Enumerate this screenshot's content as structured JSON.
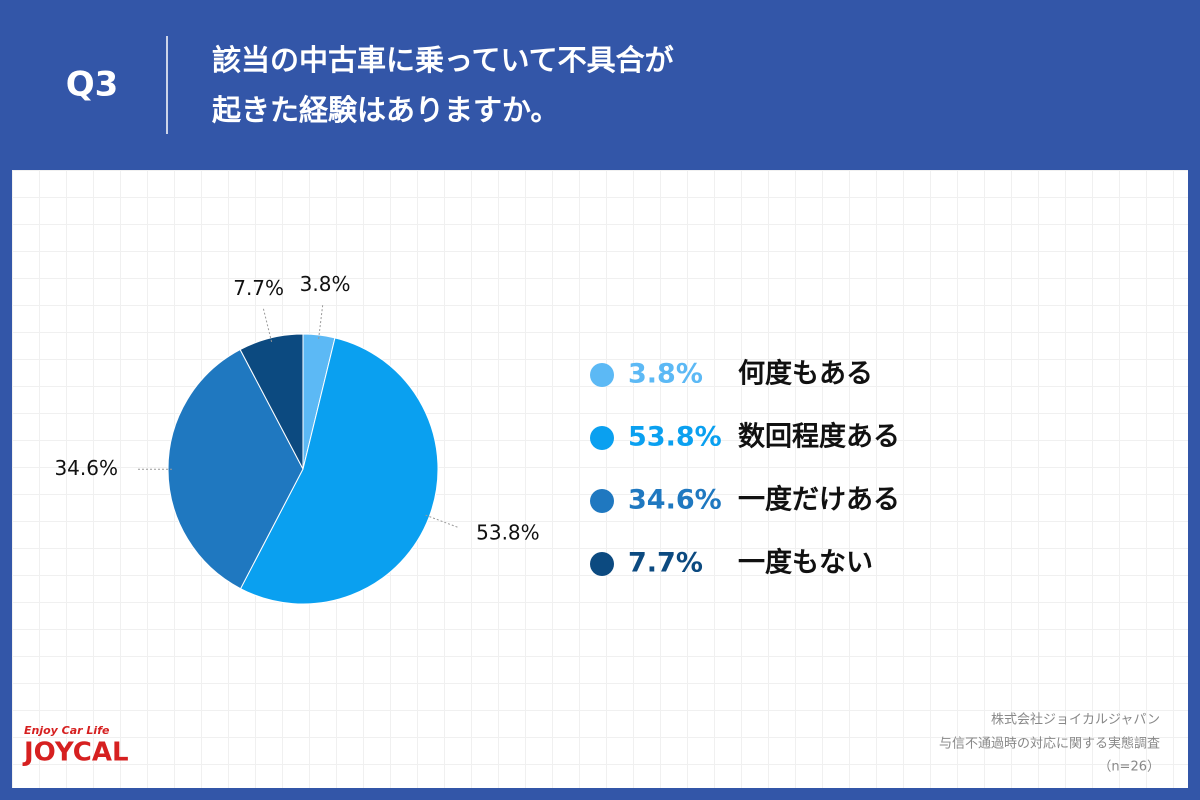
{
  "question": "Q3",
  "chart_data": {
    "type": "pie",
    "title": [
      "該当の中古車に乗っていて不具合が",
      "起きた経験はありますか。"
    ],
    "categories": [
      "何度もある",
      "数回程度ある",
      "一度だけある",
      "一度もない"
    ],
    "values": [
      3.8,
      53.8,
      34.6,
      7.7
    ],
    "value_labels": [
      "3.8%",
      "53.8%",
      "34.6%",
      "7.7%"
    ],
    "colors": [
      "#5cb9f5",
      "#0aa0f0",
      "#1f78c0",
      "#0c4a80"
    ],
    "legend": "right"
  },
  "source": [
    "株式会社ジョイカルジャパン",
    "与信不通過時の対応に関する実態調査",
    "（n=26）"
  ],
  "logo": {
    "tagline": "Enjoy Car Life",
    "name": "JOYCAL"
  }
}
